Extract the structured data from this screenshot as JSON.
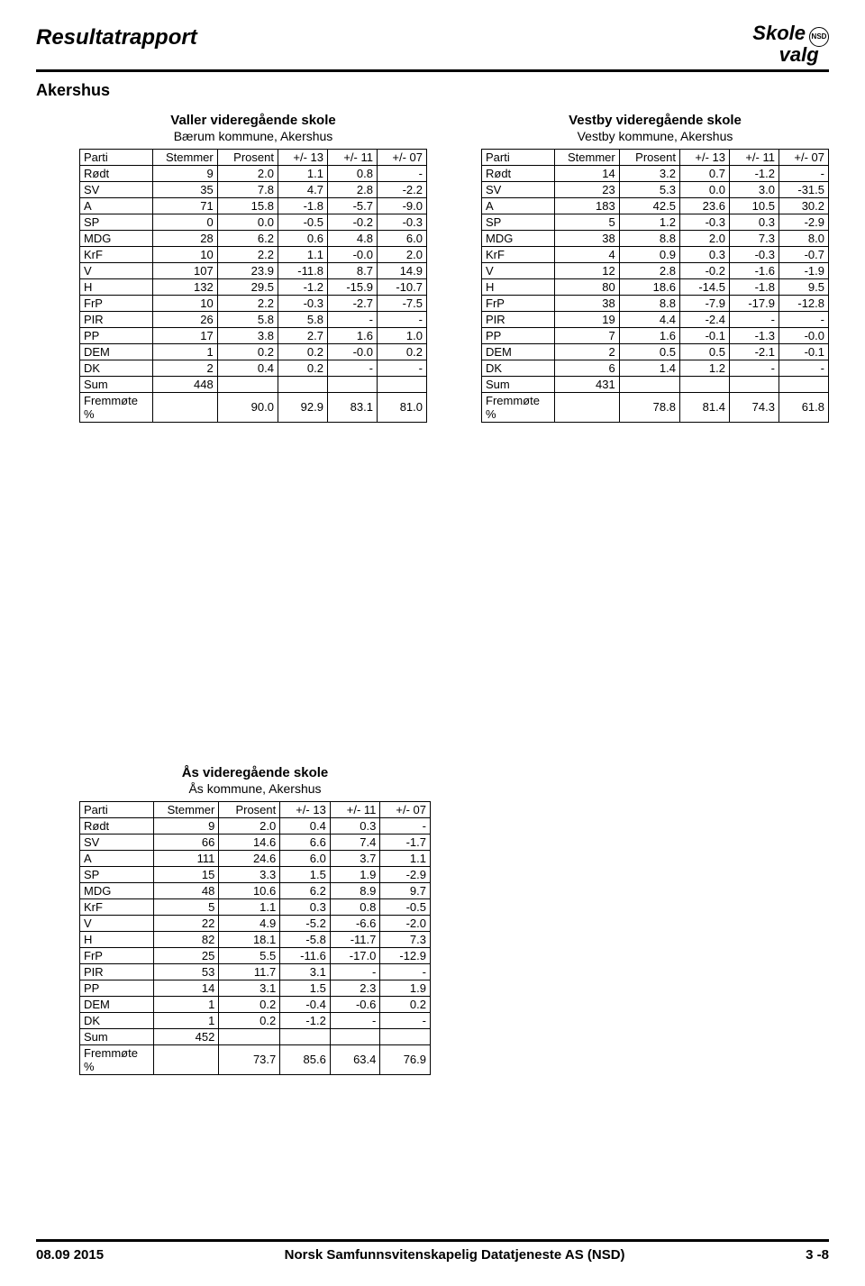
{
  "page_title": "Resultatrapport",
  "region": "Akershus",
  "logo_top": "Skole",
  "logo_bottom": "valg",
  "logo_badge": "NSD",
  "headers": [
    "Parti",
    "Stemmer",
    "Prosent",
    "+/- 13",
    "+/- 11",
    "+/- 07"
  ],
  "schools": [
    {
      "title": "Valler videregående skole",
      "subtitle": "Bærum   kommune,  Akershus",
      "rows": [
        [
          "Rødt",
          "9",
          "2.0",
          "1.1",
          "0.8",
          "-"
        ],
        [
          "SV",
          "35",
          "7.8",
          "4.7",
          "2.8",
          "-2.2"
        ],
        [
          "A",
          "71",
          "15.8",
          "-1.8",
          "-5.7",
          "-9.0"
        ],
        [
          "SP",
          "0",
          "0.0",
          "-0.5",
          "-0.2",
          "-0.3"
        ],
        [
          "MDG",
          "28",
          "6.2",
          "0.6",
          "4.8",
          "6.0"
        ],
        [
          "KrF",
          "10",
          "2.2",
          "1.1",
          "-0.0",
          "2.0"
        ],
        [
          "V",
          "107",
          "23.9",
          "-11.8",
          "8.7",
          "14.9"
        ],
        [
          "H",
          "132",
          "29.5",
          "-1.2",
          "-15.9",
          "-10.7"
        ],
        [
          "FrP",
          "10",
          "2.2",
          "-0.3",
          "-2.7",
          "-7.5"
        ],
        [
          "PIR",
          "26",
          "5.8",
          "5.8",
          "-",
          "-"
        ],
        [
          "PP",
          "17",
          "3.8",
          "2.7",
          "1.6",
          "1.0"
        ],
        [
          "DEM",
          "1",
          "0.2",
          "0.2",
          "-0.0",
          "0.2"
        ],
        [
          "DK",
          "2",
          "0.4",
          "0.2",
          "-",
          "-"
        ],
        [
          "Sum",
          "448",
          "",
          "",
          "",
          ""
        ],
        [
          "Fremmøte %",
          "",
          "90.0",
          "92.9",
          "83.1",
          "81.0"
        ]
      ]
    },
    {
      "title": "Vestby videregående skole",
      "subtitle": "Vestby   kommune,  Akershus",
      "rows": [
        [
          "Rødt",
          "14",
          "3.2",
          "0.7",
          "-1.2",
          "-"
        ],
        [
          "SV",
          "23",
          "5.3",
          "0.0",
          "3.0",
          "-31.5"
        ],
        [
          "A",
          "183",
          "42.5",
          "23.6",
          "10.5",
          "30.2"
        ],
        [
          "SP",
          "5",
          "1.2",
          "-0.3",
          "0.3",
          "-2.9"
        ],
        [
          "MDG",
          "38",
          "8.8",
          "2.0",
          "7.3",
          "8.0"
        ],
        [
          "KrF",
          "4",
          "0.9",
          "0.3",
          "-0.3",
          "-0.7"
        ],
        [
          "V",
          "12",
          "2.8",
          "-0.2",
          "-1.6",
          "-1.9"
        ],
        [
          "H",
          "80",
          "18.6",
          "-14.5",
          "-1.8",
          "9.5"
        ],
        [
          "FrP",
          "38",
          "8.8",
          "-7.9",
          "-17.9",
          "-12.8"
        ],
        [
          "PIR",
          "19",
          "4.4",
          "-2.4",
          "-",
          "-"
        ],
        [
          "PP",
          "7",
          "1.6",
          "-0.1",
          "-1.3",
          "-0.0"
        ],
        [
          "DEM",
          "2",
          "0.5",
          "0.5",
          "-2.1",
          "-0.1"
        ],
        [
          "DK",
          "6",
          "1.4",
          "1.2",
          "-",
          "-"
        ],
        [
          "Sum",
          "431",
          "",
          "",
          "",
          ""
        ],
        [
          "Fremmøte %",
          "",
          "78.8",
          "81.4",
          "74.3",
          "61.8"
        ]
      ]
    },
    {
      "title": "Ås videregående skole",
      "subtitle": "Ås   kommune,  Akershus",
      "rows": [
        [
          "Rødt",
          "9",
          "2.0",
          "0.4",
          "0.3",
          "-"
        ],
        [
          "SV",
          "66",
          "14.6",
          "6.6",
          "7.4",
          "-1.7"
        ],
        [
          "A",
          "111",
          "24.6",
          "6.0",
          "3.7",
          "1.1"
        ],
        [
          "SP",
          "15",
          "3.3",
          "1.5",
          "1.9",
          "-2.9"
        ],
        [
          "MDG",
          "48",
          "10.6",
          "6.2",
          "8.9",
          "9.7"
        ],
        [
          "KrF",
          "5",
          "1.1",
          "0.3",
          "0.8",
          "-0.5"
        ],
        [
          "V",
          "22",
          "4.9",
          "-5.2",
          "-6.6",
          "-2.0"
        ],
        [
          "H",
          "82",
          "18.1",
          "-5.8",
          "-11.7",
          "7.3"
        ],
        [
          "FrP",
          "25",
          "5.5",
          "-11.6",
          "-17.0",
          "-12.9"
        ],
        [
          "PIR",
          "53",
          "11.7",
          "3.1",
          "-",
          "-"
        ],
        [
          "PP",
          "14",
          "3.1",
          "1.5",
          "2.3",
          "1.9"
        ],
        [
          "DEM",
          "1",
          "0.2",
          "-0.4",
          "-0.6",
          "0.2"
        ],
        [
          "DK",
          "1",
          "0.2",
          "-1.2",
          "-",
          "-"
        ],
        [
          "Sum",
          "452",
          "",
          "",
          "",
          ""
        ],
        [
          "Fremmøte %",
          "",
          "73.7",
          "85.6",
          "63.4",
          "76.9"
        ]
      ]
    }
  ],
  "footer_date": "08.09 2015",
  "footer_org": "Norsk Samfunnsvitenskapelig Datatjeneste AS (NSD)",
  "footer_page": "3 -8"
}
